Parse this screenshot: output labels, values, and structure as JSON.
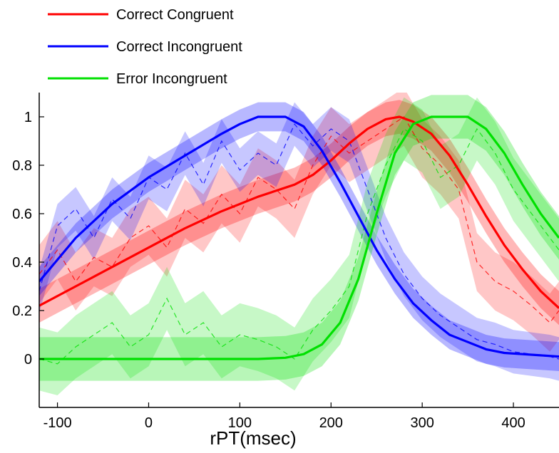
{
  "chart_data": {
    "type": "line",
    "title": "",
    "xlabel": "rPT(msec)",
    "ylabel": "",
    "xlim": [
      -120,
      450
    ],
    "ylim": [
      -0.2,
      1.1
    ],
    "x_ticks": [
      "-100",
      "0",
      "100",
      "200",
      "300",
      "400"
    ],
    "y_ticks": [
      "0",
      "0.2",
      "0.4",
      "0.6",
      "0.8",
      "1"
    ],
    "grid": false,
    "legend_position": "top-left, outside axes",
    "series": [
      {
        "name": "Correct Congruent",
        "color": "#ff0000",
        "fit_x": [
          -120,
          -80,
          -40,
          0,
          40,
          80,
          120,
          160,
          180,
          200,
          220,
          240,
          260,
          275,
          290,
          310,
          330,
          350,
          370,
          390,
          410,
          430,
          450
        ],
        "fit_y": [
          0.22,
          0.3,
          0.38,
          0.46,
          0.54,
          0.61,
          0.67,
          0.72,
          0.76,
          0.82,
          0.89,
          0.95,
          0.99,
          1.0,
          0.98,
          0.93,
          0.84,
          0.72,
          0.59,
          0.47,
          0.37,
          0.28,
          0.21
        ],
        "band_halfwidth": 0.07,
        "observed_x": [
          -120,
          -100,
          -80,
          -60,
          -40,
          -20,
          0,
          20,
          40,
          60,
          80,
          100,
          120,
          140,
          160,
          180,
          200,
          220,
          240,
          260,
          280,
          300,
          320,
          340,
          360,
          380,
          400,
          420,
          440,
          450
        ],
        "observed_y": [
          0.35,
          0.45,
          0.32,
          0.42,
          0.38,
          0.5,
          0.55,
          0.46,
          0.62,
          0.56,
          0.68,
          0.6,
          0.75,
          0.7,
          0.62,
          0.8,
          0.92,
          0.85,
          0.9,
          0.95,
          1.0,
          0.87,
          0.8,
          0.7,
          0.4,
          0.32,
          0.28,
          0.22,
          0.15,
          0.2
        ],
        "observed_band_halfwidth": 0.12
      },
      {
        "name": "Correct Incongruent",
        "color": "#0000ff",
        "fit_x": [
          -120,
          -80,
          -40,
          0,
          40,
          80,
          100,
          120,
          150,
          170,
          190,
          210,
          230,
          250,
          270,
          290,
          310,
          330,
          350,
          370,
          390,
          410,
          430,
          450
        ],
        "fit_y": [
          0.32,
          0.5,
          0.64,
          0.75,
          0.84,
          0.93,
          0.97,
          1.0,
          1.0,
          0.96,
          0.86,
          0.73,
          0.59,
          0.45,
          0.33,
          0.23,
          0.16,
          0.1,
          0.07,
          0.04,
          0.025,
          0.02,
          0.015,
          0.01
        ],
        "band_halfwidth": 0.06,
        "observed_x": [
          -120,
          -100,
          -80,
          -60,
          -40,
          -20,
          0,
          20,
          40,
          60,
          80,
          100,
          120,
          140,
          160,
          180,
          200,
          220,
          240,
          260,
          280,
          300,
          320,
          340,
          360,
          380,
          400,
          420,
          440,
          450
        ],
        "observed_y": [
          0.28,
          0.55,
          0.62,
          0.5,
          0.66,
          0.58,
          0.75,
          0.7,
          0.85,
          0.72,
          0.9,
          0.78,
          0.85,
          0.8,
          0.97,
          0.88,
          0.95,
          0.9,
          0.7,
          0.5,
          0.35,
          0.25,
          0.18,
          0.13,
          0.08,
          0.06,
          0.03,
          0.02,
          0.01,
          0.0
        ],
        "observed_band_halfwidth": 0.09
      },
      {
        "name": "Error Incongruent",
        "color": "#00e000",
        "fit_x": [
          -120,
          -80,
          -40,
          0,
          40,
          80,
          120,
          150,
          170,
          190,
          210,
          230,
          250,
          270,
          290,
          310,
          330,
          350,
          370,
          390,
          410,
          430,
          450
        ],
        "fit_y": [
          0.0,
          0.0,
          0.0,
          0.0,
          0.0,
          0.0,
          0.0,
          0.005,
          0.02,
          0.06,
          0.15,
          0.33,
          0.6,
          0.85,
          0.97,
          1.0,
          1.0,
          1.0,
          0.95,
          0.85,
          0.72,
          0.6,
          0.5
        ],
        "band_halfwidth": 0.09,
        "observed_x": [
          -120,
          -100,
          -80,
          -60,
          -40,
          -20,
          0,
          20,
          40,
          60,
          80,
          100,
          120,
          140,
          160,
          180,
          200,
          220,
          240,
          260,
          280,
          300,
          320,
          340,
          360,
          380,
          400,
          420,
          440,
          450
        ],
        "observed_y": [
          0.0,
          -0.02,
          0.05,
          0.1,
          0.15,
          0.05,
          0.1,
          0.25,
          0.1,
          0.15,
          0.05,
          0.1,
          0.08,
          0.05,
          0.0,
          0.12,
          0.2,
          0.3,
          0.6,
          0.8,
          0.95,
          0.9,
          0.75,
          0.8,
          0.95,
          0.85,
          0.7,
          0.6,
          0.5,
          0.45
        ],
        "observed_band_halfwidth": 0.13
      }
    ]
  }
}
